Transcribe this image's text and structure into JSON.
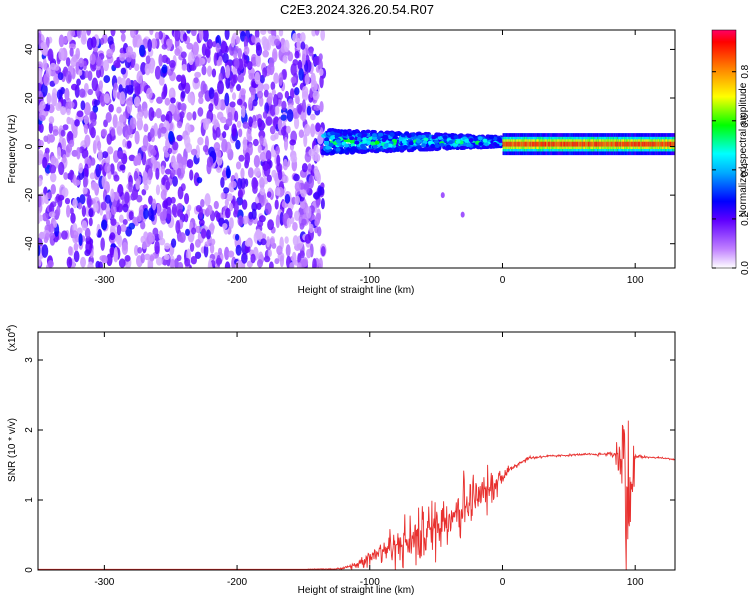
{
  "title": "C2E3.2024.326.20.54.R07",
  "chart_data": [
    {
      "type": "heatmap",
      "title": "C2E3.2024.326.20.54.R07",
      "xlabel": "Height of straight line (km)",
      "ylabel": "Frequency (Hz)",
      "xlim": [
        -350,
        130
      ],
      "ylim": [
        -50,
        48
      ],
      "xticks": [
        -300,
        -200,
        -100,
        0,
        100
      ],
      "xtick_labels": [
        "-300",
        "-200",
        "-100",
        "0",
        "100"
      ],
      "yticks": [
        -40,
        -20,
        0,
        20,
        40
      ],
      "ytick_labels": [
        "-40",
        "-20",
        "0",
        "20",
        "40"
      ],
      "colorbar": {
        "label": "Normalized spectral amplitude",
        "range": [
          0,
          0.97
        ],
        "ticks": [
          0.0,
          0.2,
          0.4,
          0.6,
          0.8
        ],
        "tick_labels": [
          "0.0",
          "0.2",
          "0.4",
          "0.6",
          "0.8"
        ],
        "colormap": [
          "#ffffff",
          "#9b30ff",
          "#0000ff",
          "#00ffff",
          "#00ff00",
          "#ffff00",
          "#ff8000",
          "#ff0000",
          "#ff0066"
        ]
      },
      "regions": [
        {
          "x_range": [
            -350,
            -135
          ],
          "description": "broadband noise",
          "amplitude": [
            0.05,
            0.2
          ]
        },
        {
          "x_range": [
            -135,
            0
          ],
          "freq_center": 2,
          "amplitude": [
            0.2,
            0.6
          ]
        },
        {
          "x_range": [
            0,
            130
          ],
          "freq_center": 1,
          "amplitude": [
            0.6,
            0.97
          ]
        }
      ],
      "branch_points": [
        [
          -45,
          -20
        ],
        [
          -30,
          -28
        ]
      ],
      "grid": false
    },
    {
      "type": "line",
      "xlabel": "Height of straight line (km)",
      "ylabel": "SNR (10 * v/v)",
      "scale_label": "(x10",
      "scale_exp": "4",
      "xlim": [
        -350,
        130
      ],
      "ylim": [
        0,
        3.4
      ],
      "xticks": [
        -300,
        -200,
        -100,
        0,
        100
      ],
      "xtick_labels": [
        "-300",
        "-200",
        "-100",
        "0",
        "100"
      ],
      "yticks": [
        0,
        1,
        2,
        3
      ],
      "ytick_labels": [
        "0",
        "1",
        "2",
        "3"
      ],
      "color": "#e8302e",
      "series": [
        {
          "x": [
            -350,
            -300,
            -250,
            -200,
            -150,
            -120,
            -110,
            -100,
            -90,
            -80,
            -70,
            -60,
            -50,
            -40,
            -30,
            -20,
            -10,
            0,
            10,
            20,
            30,
            40,
            50,
            60,
            70,
            80,
            85,
            90,
            92,
            95,
            98,
            100,
            105,
            110,
            120,
            130
          ],
          "values": [
            0.01,
            0.01,
            0.01,
            0.01,
            0.01,
            0.02,
            0.08,
            0.2,
            0.3,
            0.35,
            0.4,
            0.5,
            0.65,
            0.8,
            0.9,
            1.0,
            1.15,
            1.35,
            1.5,
            1.6,
            1.62,
            1.63,
            1.64,
            1.65,
            1.65,
            1.66,
            1.66,
            1.6,
            1.4,
            1.0,
            1.2,
            1.62,
            1.62,
            1.61,
            1.6,
            1.58
          ],
          "spread": [
            0,
            0,
            0,
            0,
            0,
            0.02,
            0.08,
            0.2,
            0.35,
            0.45,
            0.55,
            0.6,
            0.65,
            0.7,
            0.7,
            0.55,
            0.4,
            0.2,
            0.08,
            0.04,
            0.03,
            0.02,
            0.02,
            0.02,
            0.03,
            0.04,
            0.1,
            1.4,
            1.6,
            1.6,
            1.4,
            0.05,
            0.03,
            0.02,
            0.02,
            0.02
          ]
        }
      ],
      "grid": false
    }
  ]
}
